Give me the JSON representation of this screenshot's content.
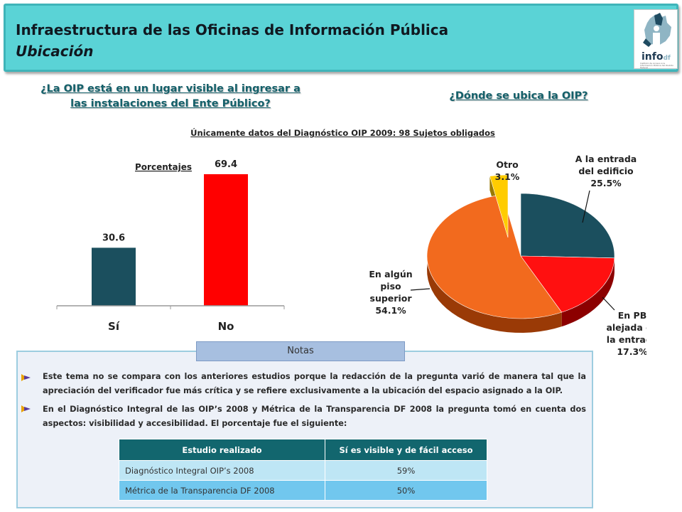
{
  "header": {
    "title": "Infraestructura de las Oficinas de Información Pública",
    "subtitle": "Ubicación",
    "logo_text": "info",
    "logo_text_suffix": "df",
    "logo_caption": "Instituto de Acceso a la Información Pública del Distrito Federal"
  },
  "questions": {
    "left_line1": "¿La OIP está en un lugar visible al ingresar a",
    "left_line2": "las instalaciones del Ente Público?",
    "right": "¿Dónde se ubica la OIP?"
  },
  "subtitle": "Únicamente datos del Diagnóstico OIP 2009: 98 Sujetos obligados",
  "chart_data": [
    {
      "type": "bar",
      "legend_label": "Porcentajes",
      "categories": [
        "Sí",
        "No"
      ],
      "values": [
        30.6,
        69.4
      ],
      "value_labels": [
        "30.6",
        "69.4"
      ],
      "colors": [
        "#1b4f5e",
        "#ff0000"
      ],
      "ylim": [
        0,
        75
      ],
      "grid": false
    },
    {
      "type": "pie",
      "style": "3d",
      "slices": [
        {
          "label_lines": [
            "A la entrada",
            "del edificio",
            "25.5%"
          ],
          "value": 25.5,
          "color": "#1b4f5e",
          "side": "#0e2e38"
        },
        {
          "label_lines": [
            "En PB",
            "alejada de",
            "la entrada",
            "17.3%"
          ],
          "value": 17.3,
          "color": "#ff1010",
          "side": "#8c0000"
        },
        {
          "label_lines": [
            "En algún",
            "piso",
            "superior",
            "54.1%"
          ],
          "value": 54.1,
          "color": "#f26a1e",
          "side": "#9a3a06"
        },
        {
          "label_lines": [
            "Otro",
            "3.1%"
          ],
          "value": 3.1,
          "color": "#ffcc00",
          "side": "#9a7a00"
        }
      ]
    }
  ],
  "notes": {
    "tab_label": "Notas",
    "bullet1": "Este tema no se compara con los anteriores estudios porque la redacción de la pregunta varió de manera tal que la apreciación del verificador fue más crítica y se refiere exclusivamente a la ubicación del espacio asignado a la OIP.",
    "bullet2": "En el Diagnóstico Integral de las OIP’s 2008 y Métrica de la Transparencia DF 2008 la pregunta tomó en cuenta dos aspectos: visibilidad y accesibilidad. El porcentaje fue el siguiente:"
  },
  "table": {
    "headers": [
      "Estudio realizado",
      "Sí es visible y de fácil acceso"
    ],
    "rows": [
      {
        "study": "Diagnóstico Integral OIP’s 2008",
        "value": "59%"
      },
      {
        "study": "Métrica de la Transparencia DF 2008",
        "value": "50%"
      }
    ]
  }
}
